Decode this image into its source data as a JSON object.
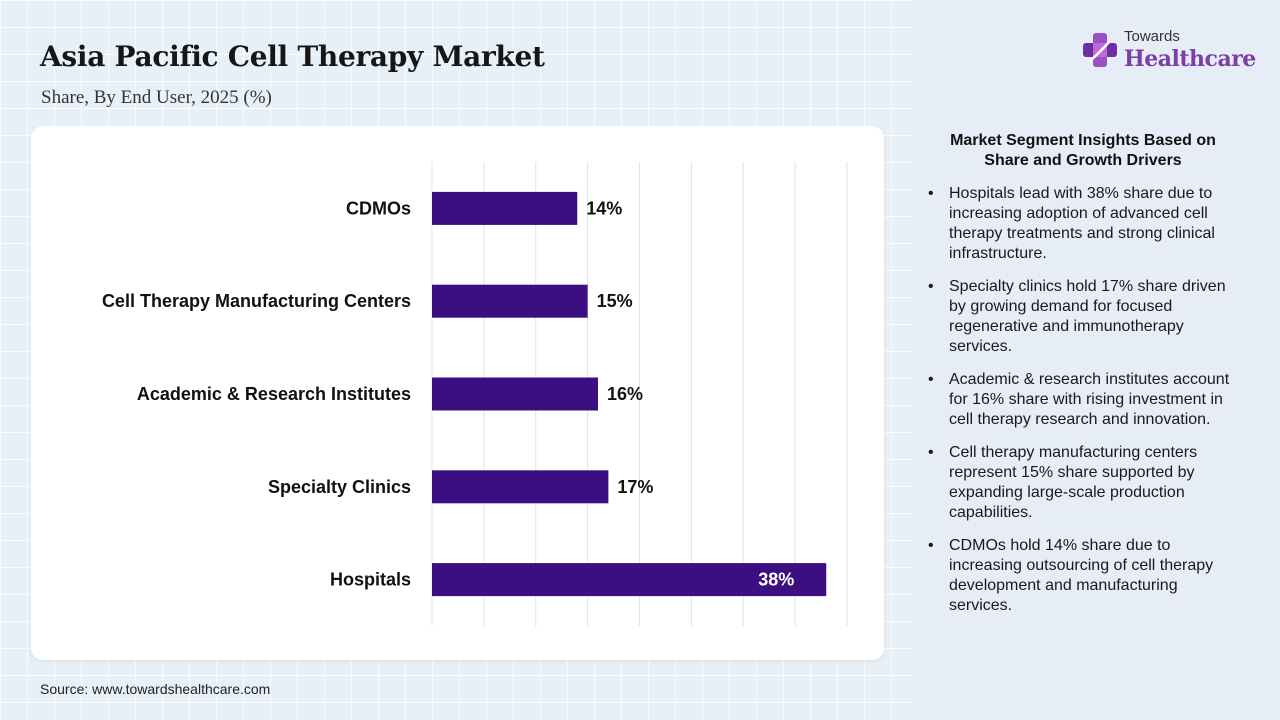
{
  "page": {
    "title": "Asia Pacific Cell Therapy Market",
    "subtitle": "Share, By End User, 2025 (%)",
    "source": "Source: www.towardshealthcare.com"
  },
  "logo": {
    "top": "Towards",
    "main": "Healthcare",
    "icon": "cross-icon"
  },
  "insights": {
    "title": "Market Segment Insights Based on Share and Growth Drivers",
    "items": [
      "Hospitals lead with 38% share due to increasing adoption of advanced cell therapy treatments and strong clinical infrastructure.",
      "Specialty clinics hold 17% share driven by growing demand for focused regenerative and immunotherapy services.",
      "Academic & research institutes account for 16% share with rising investment in cell therapy research and innovation.",
      "Cell therapy manufacturing centers represent 15% share supported by expanding large-scale production capabilities.",
      "CDMOs hold 14% share due to increasing outsourcing of cell therapy development and manufacturing services."
    ]
  },
  "chart_data": {
    "type": "bar",
    "orientation": "horizontal",
    "categories": [
      "CDMOs",
      "Cell Therapy Manufacturing Centers",
      "Academic & Research Institutes",
      "Specialty Clinics",
      "Hospitals"
    ],
    "values": [
      14,
      15,
      16,
      17,
      38
    ],
    "labels": [
      "14%",
      "15%",
      "16%",
      "17%",
      "38%"
    ],
    "unit": "%",
    "xlim": [
      0,
      40
    ],
    "grid": true,
    "bar_color": "#3b0f80"
  }
}
